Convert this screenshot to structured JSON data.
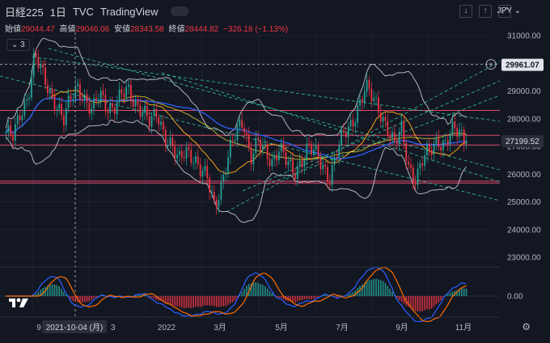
{
  "header": {
    "symbol": "日経225",
    "interval": "1日",
    "source": "TVC",
    "provider": "TradingView"
  },
  "ohlc": {
    "open_label": "始値",
    "open": "29044.47",
    "high_label": "高値",
    "high": "29046.06",
    "low_label": "安値",
    "low": "28343.58",
    "close_label": "終値",
    "close": "28444.82",
    "change": "−326.18 (−1.13%)"
  },
  "indicators_count": "3",
  "currency": "JPY",
  "crosshair": {
    "price": "29961.07",
    "date": "2021-10-04 (月)"
  },
  "last_price": "27199.52",
  "macd_zero": "0.00",
  "colors": {
    "up": "#26a69a",
    "down": "#f23645",
    "bg": "#131722",
    "ma_orange": "#f7a21b",
    "ma_blue": "#2962ff",
    "ma_pink": "#e91e63",
    "bb": "#b2b5be",
    "hline": "#e04a6d",
    "trend": "#35c5a0"
  },
  "chart_data": {
    "type": "candlestick",
    "title": "",
    "yaxis": {
      "ticks": [
        31000,
        30000,
        29000,
        28000,
        27000,
        26000,
        25000,
        24000,
        23000
      ],
      "tick_labels": [
        "31000.00",
        "30000.00",
        "29000.00",
        "28000.00",
        "27000.00",
        "26000.00",
        "25000.00",
        "24000.00",
        "23000.00"
      ],
      "range": [
        22500,
        31500
      ]
    },
    "xaxis": {
      "tick_labels": [
        "9",
        "2021-10-04 (月)",
        "2022",
        "3月",
        "5月",
        "7月",
        "9月",
        "11月"
      ]
    },
    "horizontal_levels": [
      28300,
      27400,
      27050,
      25750,
      25680
    ],
    "close_path": [
      27500,
      27300,
      28200,
      28800,
      30300,
      29600,
      29000,
      28600,
      27900,
      28700,
      29200,
      28700,
      28200,
      28900,
      28500,
      28400,
      28800,
      29000,
      28600,
      28300,
      27800,
      28200,
      27500,
      27000,
      26400,
      26900,
      26700,
      26100,
      25800,
      24900,
      25700,
      26700,
      27500,
      28000,
      26600,
      27100,
      26800,
      26500,
      27000,
      26400,
      26000,
      26500,
      27000,
      26700,
      26300,
      25900,
      26800,
      27400,
      27800,
      28500,
      29100,
      28700,
      28300,
      27700,
      27000,
      27600,
      26300,
      25800,
      26500,
      26900,
      27300,
      27000,
      27500,
      27600,
      27199.52
    ],
    "macd": {
      "zero_label": "0.00"
    }
  }
}
